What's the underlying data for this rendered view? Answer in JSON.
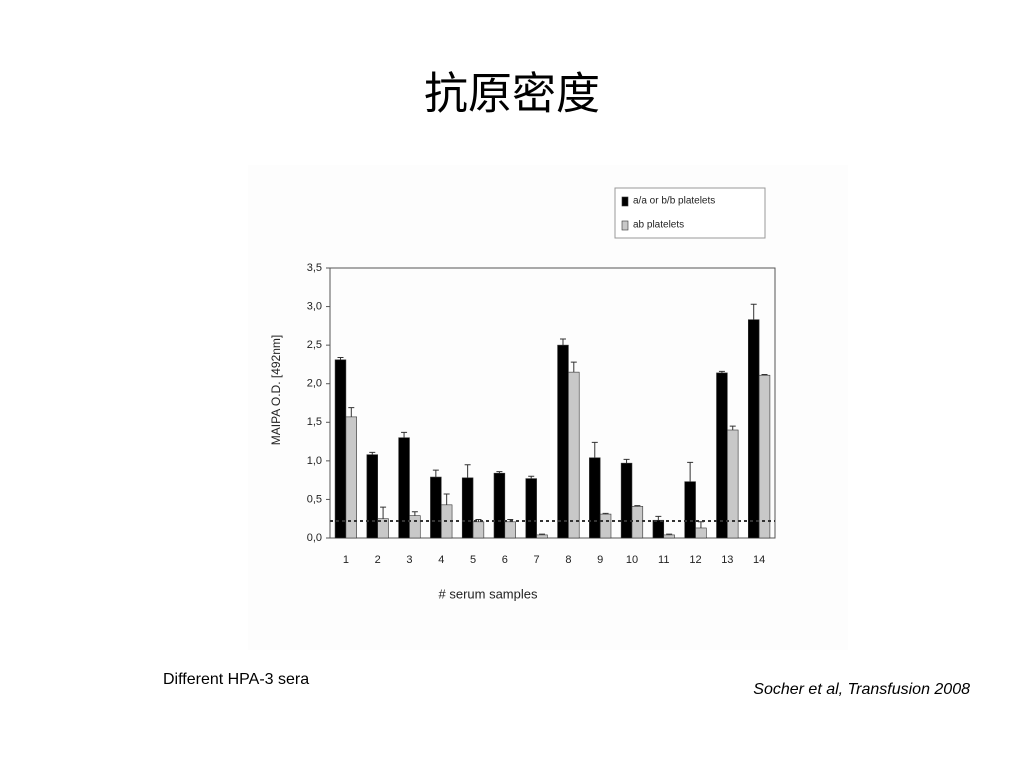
{
  "slide": {
    "title": "抗原密度",
    "caption_left": "Different HPA-3 sera",
    "caption_right": "Socher et al, Transfusion 2008"
  },
  "chart_data": {
    "type": "bar",
    "x_label": "# serum samples",
    "y_label": "MAIPA O.D. [492nm]",
    "categories": [
      "1",
      "2",
      "3",
      "4",
      "5",
      "6",
      "7",
      "8",
      "9",
      "10",
      "11",
      "12",
      "13",
      "14"
    ],
    "series": [
      {
        "name": "a/a or b/b platelets",
        "color": "#000000",
        "values": [
          2.31,
          1.08,
          1.3,
          0.79,
          0.78,
          0.84,
          0.77,
          2.5,
          1.04,
          0.97,
          0.23,
          0.73,
          2.14,
          2.83
        ],
        "errors": [
          0.03,
          0.03,
          0.07,
          0.09,
          0.17,
          0.02,
          0.03,
          0.08,
          0.2,
          0.05,
          0.05,
          0.25,
          0.02,
          0.2
        ]
      },
      {
        "name": "ab platelets",
        "color": "#c8c8c8",
        "values": [
          1.57,
          0.25,
          0.29,
          0.43,
          0.21,
          0.21,
          0.04,
          2.15,
          0.31,
          0.41,
          0.04,
          0.13,
          1.4,
          2.11
        ],
        "errors": [
          0.12,
          0.15,
          0.05,
          0.14,
          0.03,
          0.03,
          0.01,
          0.13,
          0.01,
          0.01,
          0.01,
          0.08,
          0.05,
          0.01
        ]
      }
    ],
    "threshold": 0.22,
    "ylim": [
      0,
      3.5
    ],
    "yticks": [
      {
        "value": 0,
        "label": "0,0"
      },
      {
        "value": 0.5,
        "label": "0,5"
      },
      {
        "value": 1,
        "label": "1,0"
      },
      {
        "value": 1.5,
        "label": "1,5"
      },
      {
        "value": 2,
        "label": "2,0"
      },
      {
        "value": 2.5,
        "label": "2,5"
      },
      {
        "value": 3,
        "label": "3,0"
      },
      {
        "value": 3.5,
        "label": "3,5"
      }
    ],
    "legend": "top-right"
  }
}
